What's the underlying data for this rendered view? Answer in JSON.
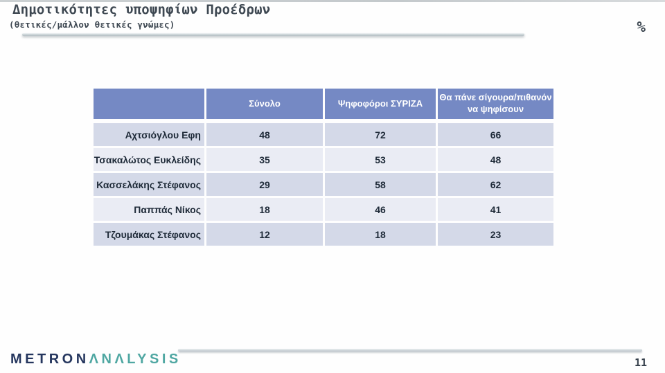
{
  "header": {
    "title": "Δημοτικότητες υποψηφίων Προέδρων",
    "subtitle": "(θετικές/μάλλον θετικές γνώμες)",
    "unit_label": "%"
  },
  "footer": {
    "logo_part1": "METRON",
    "logo_part2": "ΛNΛLYSIS",
    "page_number": "11"
  },
  "colors": {
    "header_bg": "#7589c4",
    "row_dark": "#d4d9e8",
    "row_light": "#eaecf4",
    "title_text": "#3e4852",
    "table_text": "#1e2a38",
    "logo_navy": "#25365e",
    "logo_teal": "#4fa7a2"
  },
  "chart_data": {
    "type": "table",
    "title": "Δημοτικότητες υποψηφίων Προέδρων",
    "subtitle": "(θετικές/μάλλον θετικές γνώμες)",
    "unit": "%",
    "columns": [
      "",
      "Σύνολο",
      "Ψηφοφόροι ΣΥΡΙΖΑ",
      "Θα πάνε σίγουρα/πιθανόν να ψηφίσουν"
    ],
    "rows": [
      {
        "label": "Αχτσιόγλου Εφη",
        "values": [
          48,
          72,
          66
        ]
      },
      {
        "label": "Τσακαλώτος Ευκλείδης",
        "values": [
          35,
          53,
          48
        ]
      },
      {
        "label": "Κασσελάκης Στέφανος",
        "values": [
          29,
          58,
          62
        ]
      },
      {
        "label": "Παππάς Νίκος",
        "values": [
          18,
          46,
          41
        ]
      },
      {
        "label": "Τζουμάκας Στέφανος",
        "values": [
          12,
          18,
          23
        ]
      }
    ]
  }
}
